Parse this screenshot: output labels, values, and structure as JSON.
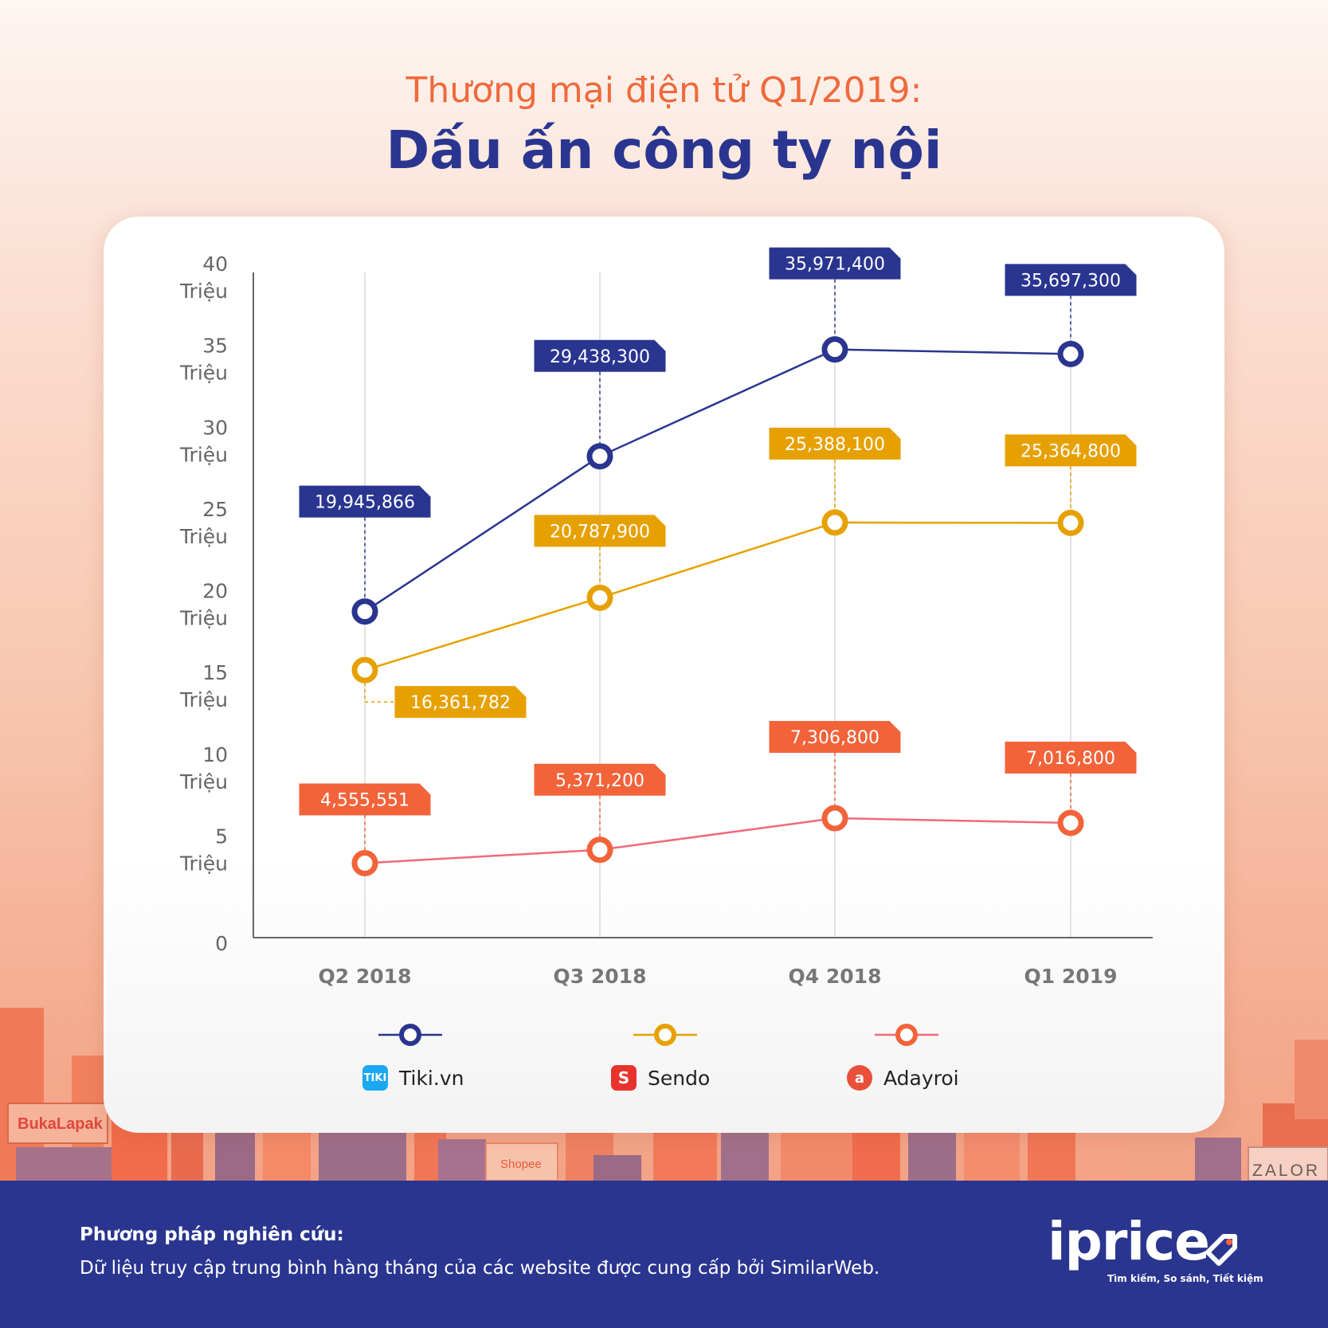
{
  "header": {
    "subtitle": "Thương mại điện tử Q1/2019:",
    "title": "Dấu ấn công ty nội"
  },
  "chart_data": {
    "type": "line",
    "categories": [
      "Q2 2018",
      "Q3 2018",
      "Q4 2018",
      "Q1 2019"
    ],
    "y_ticks": [
      {
        "value": 0,
        "label": "0",
        "unit": ""
      },
      {
        "value": 5000000,
        "label": "5",
        "unit": "Triệu"
      },
      {
        "value": 10000000,
        "label": "10",
        "unit": "Triệu"
      },
      {
        "value": 15000000,
        "label": "15",
        "unit": "Triệu"
      },
      {
        "value": 20000000,
        "label": "20",
        "unit": "Triệu"
      },
      {
        "value": 25000000,
        "label": "25",
        "unit": "Triệu"
      },
      {
        "value": 30000000,
        "label": "30",
        "unit": "Triệu"
      },
      {
        "value": 35000000,
        "label": "35",
        "unit": "Triệu"
      },
      {
        "value": 40000000,
        "label": "40",
        "unit": "Triệu"
      }
    ],
    "ylim": [
      0,
      40000000
    ],
    "grid": "vertical",
    "legend_position": "bottom",
    "series": [
      {
        "name": "Tiki.vn",
        "color": "#2a3590",
        "icon": "tiki-logo-icon",
        "values": [
          19945866,
          29438300,
          35971400,
          35697300
        ],
        "labels": [
          "19,945,866",
          "29,438,300",
          "35,971,400",
          "35,697,300"
        ]
      },
      {
        "name": "Sendo",
        "color": "#e6a100",
        "icon": "sendo-logo-icon",
        "values": [
          16361782,
          20787900,
          25388100,
          25364800
        ],
        "labels": [
          "16,361,782",
          "20,787,900",
          "25,388,100",
          "25,364,800"
        ]
      },
      {
        "name": "Adayroi",
        "color": "#f2633a",
        "line_color": "#f06a7a",
        "icon": "adayroi-logo-icon",
        "values": [
          4555551,
          5371200,
          7306800,
          7016800
        ],
        "labels": [
          "4,555,551",
          "5,371,200",
          "7,306,800",
          "7,016,800"
        ]
      }
    ]
  },
  "skyline_signs": {
    "bukalapak": "BukaLapak",
    "shopee": "Shopee",
    "zalora": "ZALOR"
  },
  "footer": {
    "method_label": "Phương pháp nghiên cứu:",
    "method_text": "Dữ liệu truy cập trung bình hàng tháng của các website được cung cấp bởi SimilarWeb.",
    "brand": "iprice",
    "tagline": "Tìm kiếm, So sánh, Tiết kiệm"
  }
}
